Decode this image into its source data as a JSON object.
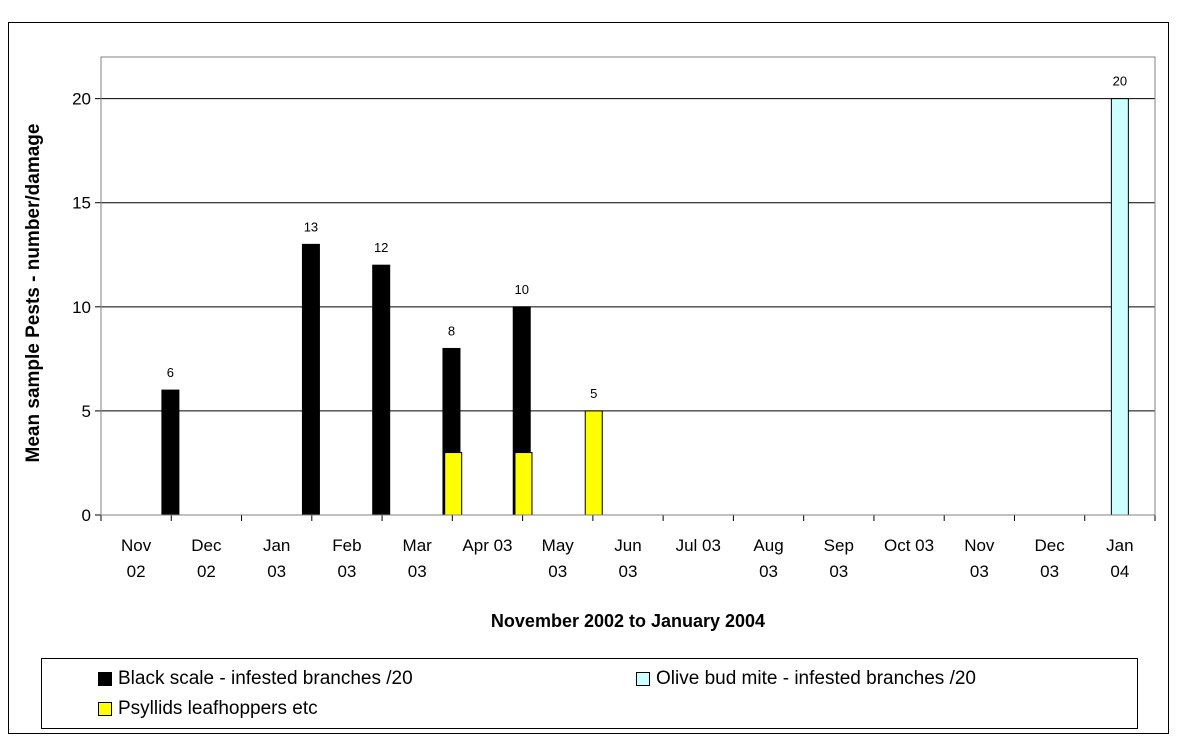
{
  "chart_data": {
    "type": "bar",
    "title": "",
    "xlabel": "November 2002 to January 2004",
    "ylabel": "Mean sample Pests - number/damage",
    "ylim": [
      0,
      22
    ],
    "yticks": [
      0,
      5,
      10,
      15,
      20
    ],
    "grid": true,
    "legend_position": "bottom",
    "categories": [
      [
        "Nov",
        "02"
      ],
      [
        "Dec",
        "02"
      ],
      [
        "Jan",
        "03"
      ],
      [
        "Feb",
        "03"
      ],
      [
        "Mar",
        "03"
      ],
      [
        "Apr 03",
        ""
      ],
      [
        "May",
        "03"
      ],
      [
        "Jun",
        "03"
      ],
      [
        "Jul 03",
        ""
      ],
      [
        "Aug",
        "03"
      ],
      [
        "Sep",
        "03"
      ],
      [
        "Oct 03",
        ""
      ],
      [
        "Nov",
        "03"
      ],
      [
        "Dec",
        "03"
      ],
      [
        "Jan",
        "04"
      ]
    ],
    "series": [
      {
        "name": "Black scale - infested branches /20",
        "color": "#000000",
        "values": [
          null,
          6,
          null,
          13,
          12,
          8,
          10,
          null,
          null,
          null,
          null,
          null,
          null,
          null,
          null
        ]
      },
      {
        "name": "Olive bud mite - infested branches /20",
        "color": "#ccffff",
        "values": [
          null,
          null,
          null,
          null,
          null,
          null,
          null,
          null,
          null,
          null,
          null,
          null,
          null,
          null,
          20
        ]
      },
      {
        "name": "Psyllids leafhoppers etc",
        "color": "#ffff00",
        "values": [
          null,
          null,
          null,
          null,
          3,
          3,
          5,
          null,
          null,
          null,
          null,
          null,
          null,
          null,
          null
        ]
      }
    ]
  }
}
